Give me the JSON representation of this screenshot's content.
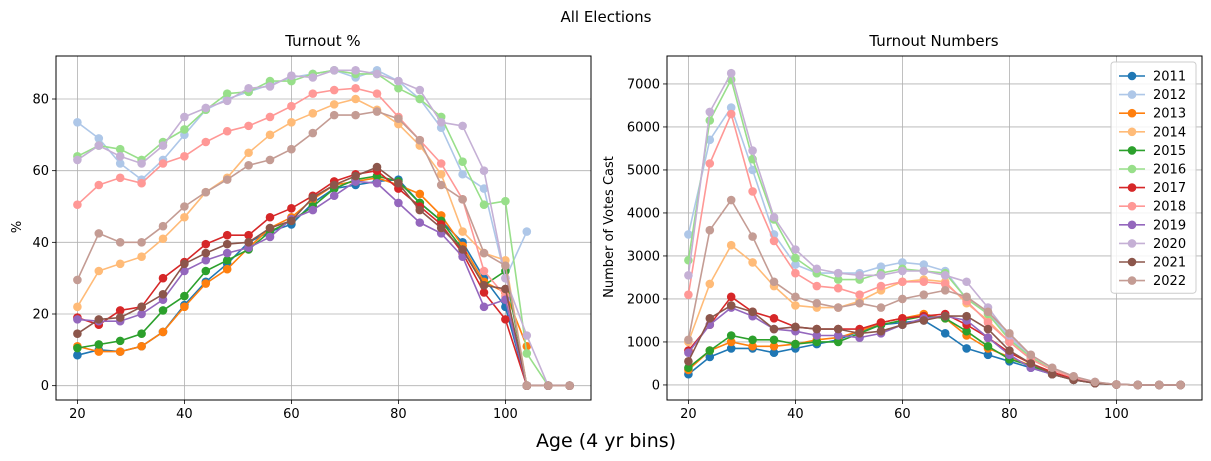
{
  "figure": {
    "suptitle": "All Elections",
    "xlabel": "Age (4 yr bins)"
  },
  "chart_data": [
    {
      "type": "line",
      "title": "Turnout %",
      "xlabel": "",
      "ylabel": "%",
      "xlim": [
        16,
        116
      ],
      "ylim": [
        -4,
        92
      ],
      "xticks": [
        20,
        40,
        60,
        80,
        100
      ],
      "yticks": [
        0,
        20,
        40,
        60,
        80
      ],
      "grid": true,
      "legend": "none",
      "x": [
        20,
        24,
        28,
        32,
        36,
        40,
        44,
        48,
        52,
        56,
        60,
        64,
        68,
        72,
        76,
        80,
        84,
        88,
        92,
        96,
        100,
        104,
        108,
        112
      ],
      "series": [
        {
          "name": "2011",
          "color": "#1f77b4",
          "values": [
            8.5,
            10,
            9.5,
            11,
            15,
            22.5,
            29,
            34,
            40,
            43,
            45,
            51,
            55,
            56,
            57,
            57.5,
            51,
            46,
            40,
            30,
            22,
            0,
            0,
            0
          ]
        },
        {
          "name": "2012",
          "color": "#aec7e8",
          "values": [
            73.5,
            69,
            62,
            57.5,
            63,
            70,
            77,
            80,
            82,
            84,
            86,
            87,
            88,
            86,
            88,
            85,
            80,
            72,
            59,
            55,
            30,
            43,
            null,
            null
          ]
        },
        {
          "name": "2013",
          "color": "#ff7f0e",
          "values": [
            11,
            9.5,
            9.5,
            11,
            15,
            22,
            28.5,
            32.5,
            38.5,
            44,
            47,
            52,
            56,
            57,
            58,
            56,
            53.5,
            47.5,
            39,
            29,
            26,
            11,
            null,
            null
          ]
        },
        {
          "name": "2014",
          "color": "#ffbb78",
          "values": [
            22,
            32,
            34,
            36,
            41,
            47,
            54,
            58,
            65,
            70,
            73.5,
            76,
            78.5,
            80,
            77,
            73,
            67,
            59,
            43,
            37,
            35,
            0,
            0,
            0
          ]
        },
        {
          "name": "2015",
          "color": "#2ca02c",
          "values": [
            10.5,
            11.5,
            12.5,
            14.5,
            21,
            25,
            32,
            35,
            38,
            43,
            46,
            50,
            55,
            57.5,
            58.5,
            57,
            51,
            46,
            38,
            28,
            32,
            0,
            0,
            0
          ]
        },
        {
          "name": "2016",
          "color": "#98df8a",
          "values": [
            64,
            67,
            66,
            63,
            68,
            71.5,
            77,
            81.5,
            82,
            85,
            85,
            87,
            88,
            87,
            87,
            83,
            80,
            75,
            62.5,
            50.5,
            51.5,
            9,
            0,
            0
          ]
        },
        {
          "name": "2017",
          "color": "#d62728",
          "values": [
            19,
            17,
            21,
            22,
            30,
            34.5,
            39.5,
            42,
            42,
            47,
            49.5,
            53,
            57,
            59,
            60,
            55,
            50,
            45,
            37,
            26,
            18.5,
            0,
            0,
            0
          ]
        },
        {
          "name": "2018",
          "color": "#ff9896",
          "values": [
            50.5,
            56,
            58,
            56.5,
            62,
            64,
            68,
            71,
            72.5,
            75,
            78,
            81.5,
            82.5,
            83,
            81.5,
            75,
            68.5,
            62,
            52,
            32,
            25,
            0,
            0,
            0
          ]
        },
        {
          "name": "2019",
          "color": "#9467bd",
          "values": [
            18.5,
            18,
            18,
            20,
            24,
            32,
            35,
            37,
            38.5,
            41.5,
            46.5,
            49,
            53,
            57,
            56.5,
            51,
            45.5,
            42.5,
            36,
            22,
            24,
            0,
            0,
            0
          ]
        },
        {
          "name": "2020",
          "color": "#c5b0d5",
          "values": [
            63,
            67,
            64,
            62,
            67,
            75,
            77.5,
            79.5,
            83,
            83.5,
            86.5,
            86,
            88,
            88,
            87,
            85,
            82.5,
            73.5,
            72.5,
            60,
            30,
            14,
            0,
            0
          ]
        },
        {
          "name": "2021",
          "color": "#8c564b",
          "values": [
            14.5,
            18.5,
            19,
            22,
            25.5,
            34,
            37,
            39.5,
            40,
            44,
            46,
            52.5,
            56,
            58.5,
            61,
            56.5,
            49,
            44,
            38,
            28,
            27,
            0,
            0,
            0
          ]
        },
        {
          "name": "2022",
          "color": "#c49c94",
          "values": [
            29.5,
            42.5,
            40,
            40,
            44.5,
            50,
            54,
            57.5,
            61.5,
            63,
            66,
            70.5,
            75.5,
            75.5,
            76.5,
            74.5,
            68.5,
            56,
            52,
            37,
            33.5,
            0,
            0,
            0
          ]
        }
      ]
    },
    {
      "type": "line",
      "title": "Turnout Numbers",
      "xlabel": "",
      "ylabel": "Number of Votes Cast",
      "xlim": [
        16,
        116
      ],
      "ylim": [
        -350,
        7650
      ],
      "xticks": [
        20,
        40,
        60,
        80,
        100
      ],
      "yticks": [
        0,
        1000,
        2000,
        3000,
        4000,
        5000,
        6000,
        7000
      ],
      "grid": true,
      "legend": "top-right",
      "x": [
        20,
        24,
        28,
        32,
        36,
        40,
        44,
        48,
        52,
        56,
        60,
        64,
        68,
        72,
        76,
        80,
        84,
        88,
        92,
        96,
        100,
        104,
        108,
        112
      ],
      "series": [
        {
          "name": "2011",
          "color": "#1f77b4",
          "values": [
            250,
            650,
            850,
            850,
            750,
            850,
            950,
            1050,
            1250,
            1400,
            1450,
            1500,
            1200,
            850,
            700,
            550,
            400,
            250,
            120,
            50,
            10,
            0,
            0,
            0
          ]
        },
        {
          "name": "2012",
          "color": "#aec7e8",
          "values": [
            3500,
            5700,
            6450,
            5000,
            3500,
            2800,
            2600,
            2600,
            2600,
            2750,
            2850,
            2800,
            2650,
            2000,
            1700,
            1100,
            650,
            350,
            180,
            60,
            10,
            5,
            0,
            0
          ]
        },
        {
          "name": "2013",
          "color": "#ff7f0e",
          "values": [
            350,
            800,
            1000,
            900,
            900,
            950,
            1050,
            1100,
            1250,
            1450,
            1550,
            1650,
            1550,
            1150,
            850,
            650,
            450,
            250,
            120,
            40,
            10,
            0,
            0,
            0
          ]
        },
        {
          "name": "2014",
          "color": "#ffbb78",
          "values": [
            1000,
            2350,
            3250,
            2850,
            2300,
            1850,
            1800,
            1800,
            1950,
            2200,
            2400,
            2450,
            2400,
            1900,
            1500,
            1000,
            600,
            350,
            170,
            60,
            10,
            0,
            0,
            0
          ]
        },
        {
          "name": "2015",
          "color": "#2ca02c",
          "values": [
            400,
            800,
            1150,
            1050,
            1050,
            950,
            1000,
            1000,
            1200,
            1400,
            1500,
            1600,
            1550,
            1250,
            900,
            600,
            450,
            250,
            120,
            40,
            10,
            0,
            0,
            0
          ]
        },
        {
          "name": "2016",
          "color": "#98df8a",
          "values": [
            2900,
            6150,
            7100,
            5250,
            3850,
            2950,
            2600,
            2450,
            2450,
            2600,
            2700,
            2650,
            2600,
            2000,
            1650,
            1050,
            650,
            350,
            180,
            60,
            10,
            0,
            0,
            0
          ]
        },
        {
          "name": "2017",
          "color": "#d62728",
          "values": [
            800,
            1400,
            2050,
            1700,
            1550,
            1350,
            1300,
            1300,
            1300,
            1450,
            1550,
            1600,
            1650,
            1400,
            1100,
            750,
            500,
            300,
            140,
            50,
            10,
            0,
            0,
            0
          ]
        },
        {
          "name": "2018",
          "color": "#ff9896",
          "values": [
            2100,
            5150,
            6300,
            4500,
            3350,
            2600,
            2300,
            2250,
            2100,
            2300,
            2400,
            2400,
            2350,
            1950,
            1450,
            1000,
            600,
            350,
            170,
            60,
            10,
            0,
            0,
            0
          ]
        },
        {
          "name": "2019",
          "color": "#9467bd",
          "values": [
            750,
            1400,
            1800,
            1600,
            1300,
            1250,
            1150,
            1150,
            1100,
            1200,
            1400,
            1550,
            1600,
            1500,
            1100,
            700,
            400,
            250,
            120,
            40,
            10,
            0,
            0,
            0
          ]
        },
        {
          "name": "2020",
          "color": "#c5b0d5",
          "values": [
            2550,
            6350,
            7250,
            5450,
            3900,
            3150,
            2700,
            2600,
            2550,
            2550,
            2650,
            2650,
            2550,
            2400,
            1800,
            1150,
            700,
            400,
            200,
            70,
            10,
            0,
            0,
            0
          ]
        },
        {
          "name": "2021",
          "color": "#8c564b",
          "values": [
            550,
            1550,
            1850,
            1700,
            1300,
            1350,
            1300,
            1300,
            1200,
            1250,
            1400,
            1500,
            1600,
            1600,
            1300,
            800,
            500,
            250,
            120,
            40,
            10,
            0,
            0,
            0
          ]
        },
        {
          "name": "2022",
          "color": "#c49c94",
          "values": [
            1050,
            3600,
            4300,
            3450,
            2400,
            2050,
            1900,
            1800,
            1900,
            1800,
            2000,
            2100,
            2200,
            2050,
            1700,
            1200,
            700,
            400,
            200,
            70,
            10,
            0,
            0,
            0
          ]
        }
      ]
    }
  ]
}
